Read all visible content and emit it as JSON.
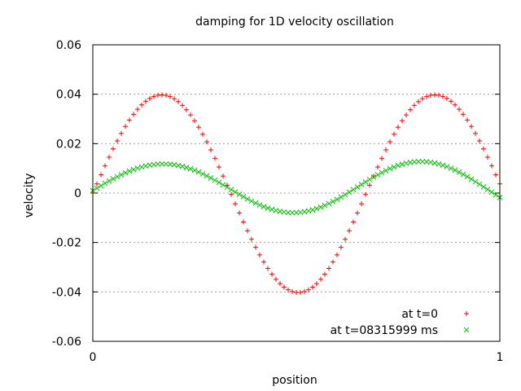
{
  "chart_data": {
    "type": "scatter",
    "title": "damping for 1D velocity oscillation",
    "xlabel": "position",
    "ylabel": "velocity",
    "xlim": [
      0,
      1
    ],
    "ylim": [
      -0.06,
      0.06
    ],
    "xticks": [
      "0",
      "1"
    ],
    "yticks": [
      "0.06",
      "0.04",
      "0.02",
      "0",
      "-0.02",
      "-0.04",
      "-0.06"
    ],
    "grid": true,
    "legend_position": "bottom-right",
    "series": [
      {
        "name": "at t=0",
        "marker": "plus",
        "color": "#ff0000",
        "x": [
          0.0,
          0.01,
          0.02,
          0.03,
          0.04,
          0.05,
          0.06,
          0.07,
          0.08,
          0.09,
          0.1,
          0.11,
          0.12,
          0.13,
          0.14,
          0.15,
          0.16,
          0.17,
          0.18,
          0.19,
          0.2,
          0.21,
          0.22,
          0.23,
          0.24,
          0.25,
          0.26,
          0.27,
          0.28,
          0.29,
          0.3,
          0.31,
          0.32,
          0.33,
          0.34,
          0.35,
          0.36,
          0.37,
          0.38,
          0.39,
          0.4,
          0.41,
          0.42,
          0.43,
          0.44,
          0.45,
          0.46,
          0.47,
          0.48,
          0.49,
          0.5,
          0.51,
          0.52,
          0.53,
          0.54,
          0.55,
          0.56,
          0.57,
          0.58,
          0.59,
          0.6,
          0.61,
          0.62,
          0.63,
          0.64,
          0.65,
          0.66,
          0.67,
          0.68,
          0.69,
          0.7,
          0.71,
          0.72,
          0.73,
          0.74,
          0.75,
          0.76,
          0.77,
          0.78,
          0.79,
          0.8,
          0.81,
          0.82,
          0.83,
          0.84,
          0.85,
          0.86,
          0.87,
          0.88,
          0.89,
          0.9,
          0.91,
          0.92,
          0.93,
          0.94,
          0.95,
          0.96,
          0.97,
          0.98,
          0.99,
          1.0
        ],
        "y": [
          0.0,
          0.00371,
          0.00739,
          0.011,
          0.01451,
          0.01789,
          0.02111,
          0.02414,
          0.02696,
          0.02955,
          0.03187,
          0.03393,
          0.03569,
          0.03715,
          0.03829,
          0.0391,
          0.03959,
          0.03974,
          0.03955,
          0.03902,
          0.03817,
          0.03699,
          0.0355,
          0.03371,
          0.03162,
          0.02927,
          0.02665,
          0.0238,
          0.02074,
          0.01748,
          0.01407,
          0.01052,
          0.00688,
          0.00316,
          -0.00059,
          -0.00434,
          -0.00806,
          -0.01171,
          -0.01527,
          -0.01869,
          -0.02196,
          -0.02503,
          -0.02789,
          -0.0305,
          -0.03284,
          -0.0349,
          -0.03664,
          -0.03806,
          -0.03914,
          -0.03986,
          -0.04022,
          -0.04022,
          -0.03986,
          -0.03914,
          -0.03806,
          -0.03664,
          -0.0349,
          -0.03284,
          -0.0305,
          -0.02789,
          -0.02503,
          -0.02196,
          -0.01869,
          -0.01527,
          -0.01171,
          -0.00806,
          -0.00434,
          -0.00059,
          0.00316,
          0.00688,
          0.01052,
          0.01407,
          0.01748,
          0.02074,
          0.0238,
          0.02665,
          0.02927,
          0.03162,
          0.03371,
          0.0355,
          0.03699,
          0.03817,
          0.03902,
          0.03955,
          0.03974,
          0.03959,
          0.0391,
          0.03829,
          0.03715,
          0.03569,
          0.03393,
          0.03187,
          0.02955,
          0.02696,
          0.02414,
          0.02111,
          0.01789,
          0.01451,
          0.011,
          0.00739,
          0.00371
        ]
      },
      {
        "name": "at t=08315999 ms",
        "marker": "cross",
        "color": "#00c000",
        "x": [
          0.0,
          0.01,
          0.02,
          0.03,
          0.04,
          0.05,
          0.06,
          0.07,
          0.08,
          0.09,
          0.1,
          0.11,
          0.12,
          0.13,
          0.14,
          0.15,
          0.16,
          0.17,
          0.18,
          0.19,
          0.2,
          0.21,
          0.22,
          0.23,
          0.24,
          0.25,
          0.26,
          0.27,
          0.28,
          0.29,
          0.3,
          0.31,
          0.32,
          0.33,
          0.34,
          0.35,
          0.36,
          0.37,
          0.38,
          0.39,
          0.4,
          0.41,
          0.42,
          0.43,
          0.44,
          0.45,
          0.46,
          0.47,
          0.48,
          0.49,
          0.5,
          0.51,
          0.52,
          0.53,
          0.54,
          0.55,
          0.56,
          0.57,
          0.58,
          0.59,
          0.6,
          0.61,
          0.62,
          0.63,
          0.64,
          0.65,
          0.66,
          0.67,
          0.68,
          0.69,
          0.7,
          0.71,
          0.72,
          0.73,
          0.74,
          0.75,
          0.76,
          0.77,
          0.78,
          0.79,
          0.8,
          0.81,
          0.82,
          0.83,
          0.84,
          0.85,
          0.86,
          0.87,
          0.88,
          0.89,
          0.9,
          0.91,
          0.92,
          0.93,
          0.94,
          0.95,
          0.96,
          0.97,
          0.98,
          0.99,
          1.0
        ],
        "y": [
          0.001,
          0.00199,
          0.00297,
          0.00393,
          0.00486,
          0.00576,
          0.00662,
          0.00743,
          0.00819,
          0.00889,
          0.00952,
          0.01008,
          0.01057,
          0.01098,
          0.01131,
          0.01156,
          0.01172,
          0.01179,
          0.01177,
          0.01166,
          0.01146,
          0.01117,
          0.0108,
          0.01034,
          0.00981,
          0.0092,
          0.00852,
          0.00777,
          0.00697,
          0.00611,
          0.00521,
          0.00428,
          0.00333,
          0.00237,
          0.00139,
          0.00042,
          -0.00054,
          -0.00147,
          -0.00238,
          -0.00324,
          -0.00405,
          -0.0048,
          -0.00549,
          -0.0061,
          -0.00663,
          -0.00707,
          -0.00743,
          -0.00769,
          -0.00786,
          -0.00793,
          -0.0079,
          -0.00777,
          -0.00755,
          -0.00722,
          -0.00681,
          -0.0063,
          -0.0057,
          -0.00502,
          -0.00427,
          -0.00345,
          -0.00256,
          -0.00162,
          -0.00064,
          0.00037,
          0.0014,
          0.00243,
          0.00347,
          0.00449,
          0.0055,
          0.00647,
          0.0074,
          0.00829,
          0.00912,
          0.00988,
          0.01056,
          0.01116,
          0.01167,
          0.01209,
          0.01241,
          0.01263,
          0.01274,
          0.01275,
          0.01266,
          0.01246,
          0.01217,
          0.01177,
          0.01128,
          0.0107,
          0.01003,
          0.00928,
          0.00846,
          0.00758,
          0.00664,
          0.00565,
          0.00463,
          0.00358,
          0.00251,
          0.00144,
          0.00036,
          -0.00071,
          -0.00177
        ]
      }
    ]
  }
}
